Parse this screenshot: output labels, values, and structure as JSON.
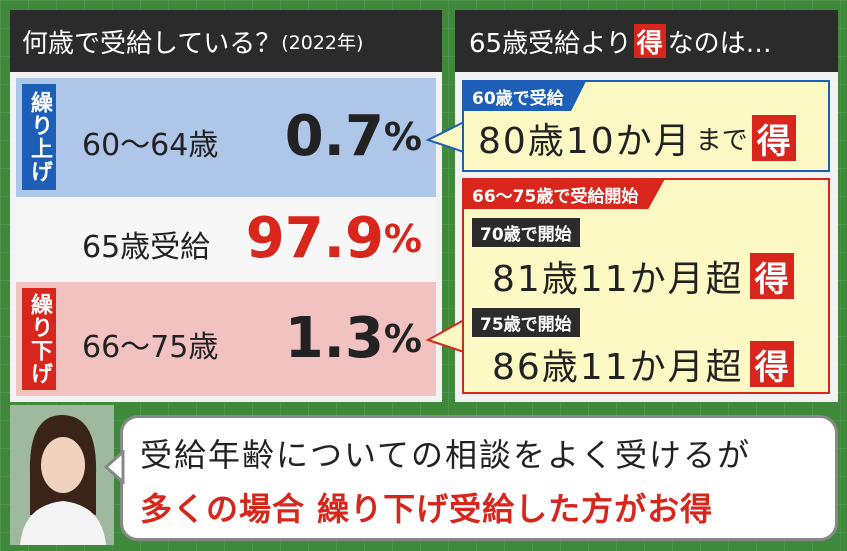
{
  "left_panel": {
    "title": "何歳で受給している？",
    "year": "(2022年)",
    "rows": [
      {
        "tag": "繰り上げ",
        "age": "60～64歳",
        "value": "0.7",
        "unit": "%"
      },
      {
        "age": "65歳受給",
        "value": "97.9",
        "unit": "%"
      },
      {
        "tag": "繰り下げ",
        "age": "66～75歳",
        "value": "1.3",
        "unit": "%"
      }
    ]
  },
  "right_panel": {
    "title": "65歳受給より",
    "title_highlight": "得",
    "title_suffix": "なのは…",
    "early": {
      "label": "60歳で受給",
      "text": "80歳10か月",
      "suffix": "まで",
      "badge": "得"
    },
    "late": {
      "label": "66～75歳で受給開始",
      "items": [
        {
          "label": "70歳で開始",
          "text": "81歳11か月超",
          "badge": "得"
        },
        {
          "label": "75歳で開始",
          "text": "86歳11か月超",
          "badge": "得"
        }
      ]
    }
  },
  "caption": {
    "lines": [
      "受給年齢についての相談をよく受けるが",
      "多くの場合 繰り下げ受給した方がお得"
    ]
  }
}
